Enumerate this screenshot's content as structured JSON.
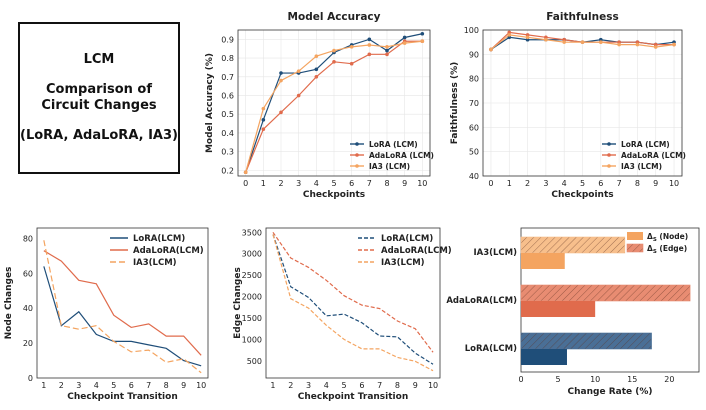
{
  "title_box": {
    "line1": "LCM",
    "line2": "Comparison of",
    "line3": "Circuit Changes",
    "line4": "(LoRA, AdaLoRA, IA3)"
  },
  "colors": {
    "lora": "#1f4e79",
    "adalora": "#e06b4c",
    "ia3": "#f4a460"
  },
  "chart_data": [
    {
      "id": "accuracy",
      "type": "line",
      "title": "Model Accuracy",
      "xlabel": "Checkpoints",
      "ylabel": "Model Accuracy (%)",
      "x": [
        0,
        1,
        2,
        3,
        4,
        5,
        6,
        7,
        8,
        9,
        10
      ],
      "xticks": [
        "0",
        "1",
        "2",
        "3",
        "4",
        "5",
        "6",
        "7",
        "8",
        "9",
        "10"
      ],
      "ylim": [
        0.17,
        0.95
      ],
      "yticks": [
        0.2,
        0.3,
        0.4,
        0.5,
        0.6,
        0.7,
        0.8,
        0.9
      ],
      "ytick_labels": [
        "0.2",
        "0.3",
        "0.4",
        "0.5",
        "0.6",
        "0.7",
        "0.8",
        "0.9"
      ],
      "grid": true,
      "legend_position": "lower-right",
      "series": [
        {
          "name": "LoRA (LCM)",
          "color": "#1f4e79",
          "dash": "",
          "values": [
            0.19,
            0.47,
            0.72,
            0.72,
            0.74,
            0.83,
            0.87,
            0.9,
            0.84,
            0.91,
            0.93
          ]
        },
        {
          "name": "AdaLoRA (LCM)",
          "color": "#e06b4c",
          "dash": "",
          "values": [
            0.19,
            0.42,
            0.51,
            0.6,
            0.7,
            0.78,
            0.77,
            0.82,
            0.82,
            0.89,
            0.89
          ]
        },
        {
          "name": "IA3 (LCM)",
          "color": "#f4a460",
          "dash": "",
          "values": [
            0.19,
            0.53,
            0.68,
            0.73,
            0.81,
            0.84,
            0.86,
            0.87,
            0.86,
            0.88,
            0.89
          ]
        }
      ]
    },
    {
      "id": "faithfulness",
      "type": "line",
      "title": "Faithfulness",
      "xlabel": "Checkpoints",
      "ylabel": "Faithfulness (%)",
      "x": [
        0,
        1,
        2,
        3,
        4,
        5,
        6,
        7,
        8,
        9,
        10
      ],
      "xticks": [
        "0",
        "1",
        "2",
        "3",
        "4",
        "5",
        "6",
        "7",
        "8",
        "9",
        "10"
      ],
      "ylim": [
        40,
        100
      ],
      "yticks": [
        40,
        50,
        60,
        70,
        80,
        90,
        100
      ],
      "ytick_labels": [
        "40",
        "50",
        "60",
        "70",
        "80",
        "90",
        "100"
      ],
      "grid": true,
      "legend_position": "lower-right",
      "series": [
        {
          "name": "LoRA (LCM)",
          "color": "#1f4e79",
          "dash": "",
          "values": [
            92,
            97,
            96,
            96,
            96,
            95,
            96,
            95,
            95,
            94,
            95
          ]
        },
        {
          "name": "AdaLoRA (LCM)",
          "color": "#e06b4c",
          "dash": "",
          "values": [
            92,
            99,
            98,
            97,
            96,
            95,
            95,
            95,
            95,
            94,
            94
          ]
        },
        {
          "name": "IA3 (LCM)",
          "color": "#f4a460",
          "dash": "",
          "values": [
            92,
            98,
            97,
            96,
            95,
            95,
            95,
            94,
            94,
            93,
            94
          ]
        }
      ]
    },
    {
      "id": "node",
      "type": "line",
      "title": "",
      "xlabel": "Checkpoint Transition",
      "ylabel": "Node Changes",
      "x": [
        1,
        2,
        3,
        4,
        5,
        6,
        7,
        8,
        9,
        10
      ],
      "xticks": [
        "1",
        "2",
        "3",
        "4",
        "5",
        "6",
        "7",
        "8",
        "9",
        "10"
      ],
      "ylim": [
        0,
        86
      ],
      "yticks": [
        0,
        20,
        40,
        60,
        80
      ],
      "ytick_labels": [
        "0",
        "20",
        "40",
        "60",
        "80"
      ],
      "grid": false,
      "legend_position": "top-right",
      "series": [
        {
          "name": "LoRA(LCM)",
          "color": "#1f4e79",
          "dash": "",
          "values": [
            64,
            30,
            38,
            25,
            21,
            21,
            19,
            17,
            10,
            7
          ]
        },
        {
          "name": "AdaLoRA(LCM)",
          "color": "#e06b4c",
          "dash": "",
          "values": [
            73,
            67,
            56,
            54,
            36,
            29,
            31,
            24,
            24,
            13
          ]
        },
        {
          "name": "IA3(LCM)",
          "color": "#f4a460",
          "dash": "6,3",
          "values": [
            79,
            30,
            28,
            30,
            21,
            15,
            16,
            9,
            11,
            3
          ]
        }
      ]
    },
    {
      "id": "edge",
      "type": "line",
      "title": "",
      "xlabel": "Checkpoint Transition",
      "ylabel": "Edge Changes",
      "x": [
        1,
        2,
        3,
        4,
        5,
        6,
        7,
        8,
        9,
        10
      ],
      "xticks": [
        "1",
        "2",
        "3",
        "4",
        "5",
        "6",
        "7",
        "8",
        "9",
        "10"
      ],
      "ylim": [
        100,
        3600
      ],
      "yticks": [
        500,
        1000,
        1500,
        2000,
        2500,
        3000,
        3500
      ],
      "ytick_labels": [
        "500",
        "1000",
        "1500",
        "2000",
        "2500",
        "3000",
        "3500"
      ],
      "grid": false,
      "legend_position": "top-right",
      "series": [
        {
          "name": "LoRA(LCM)",
          "color": "#1f4e79",
          "dash": "4,2",
          "values": [
            3450,
            2230,
            1980,
            1550,
            1590,
            1390,
            1080,
            1060,
            680,
            420
          ]
        },
        {
          "name": "AdaLoRA(LCM)",
          "color": "#e06b4c",
          "dash": "4,2",
          "values": [
            3500,
            2900,
            2680,
            2380,
            2020,
            1800,
            1720,
            1430,
            1250,
            700
          ]
        },
        {
          "name": "IA3(LCM)",
          "color": "#f4a460",
          "dash": "4,2",
          "values": [
            3450,
            1950,
            1730,
            1330,
            1000,
            780,
            780,
            580,
            490,
            270
          ]
        }
      ]
    },
    {
      "id": "change_rate",
      "type": "bar",
      "orientation": "horizontal",
      "title": "",
      "xlabel": "Change Rate (%)",
      "ylabel": "",
      "categories": [
        "LoRA(LCM)",
        "AdaLoRA(LCM)",
        "IA3(LCM)"
      ],
      "xlim": [
        0,
        24
      ],
      "xticks": [
        0,
        5,
        10,
        15,
        20
      ],
      "xtick_labels": [
        "0",
        "5",
        "10",
        "15",
        "20"
      ],
      "legend_position": "top-right",
      "series": [
        {
          "name": "Δ_S (Node)",
          "legend_label": "Δ",
          "legend_sub": "S",
          "legend_suffix": " (Node)",
          "hatch": false,
          "values": [
            6.2,
            10.0,
            5.9
          ],
          "colors": [
            "#1f4e79",
            "#e06b4c",
            "#f4a460"
          ]
        },
        {
          "name": "Δ_S (Edge)",
          "legend_label": "Δ",
          "legend_sub": "S",
          "legend_suffix": " (Edge)",
          "hatch": true,
          "values": [
            17.6,
            22.8,
            14.0
          ],
          "colors": [
            "#4a6f96",
            "#e88c72",
            "#f7bf8c"
          ]
        }
      ]
    }
  ]
}
